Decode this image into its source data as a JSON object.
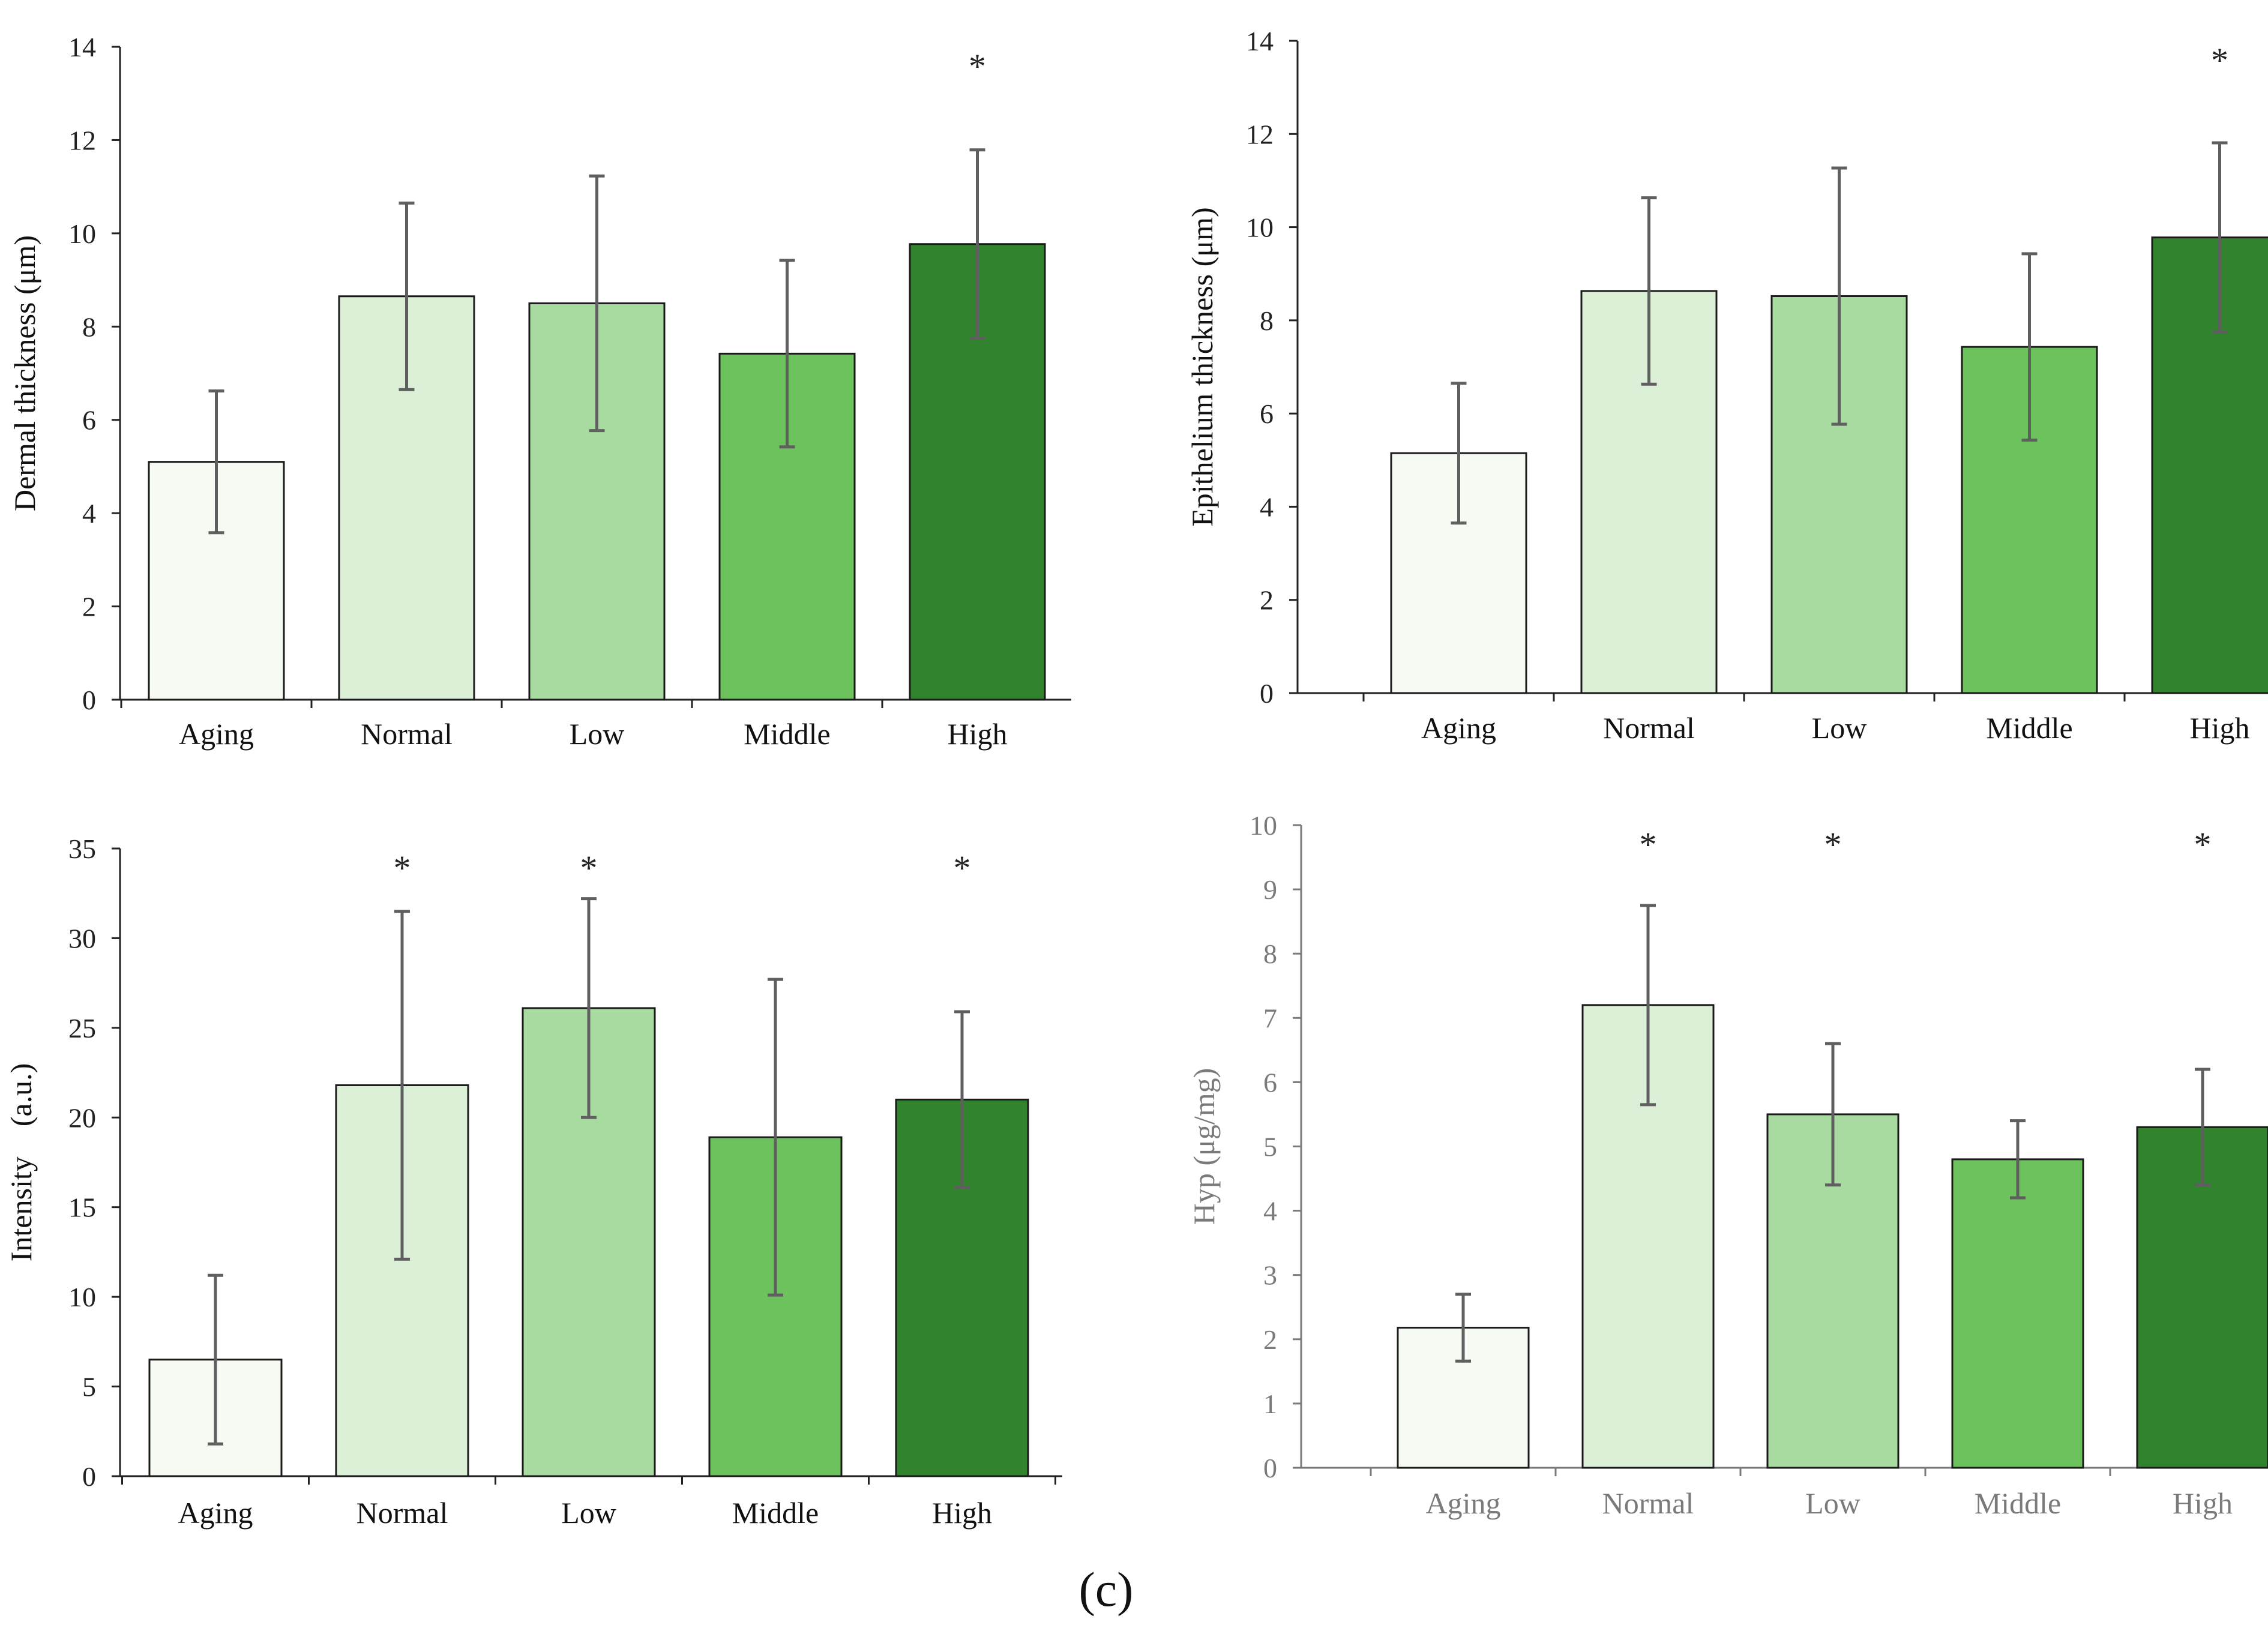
{
  "figure_label": "(c)",
  "chart_data": [
    {
      "type": "bar",
      "title": "",
      "xlabel": "",
      "ylabel": "Dermal thickness (μm)",
      "ylim": [
        0,
        14
      ],
      "yticks": [
        "0",
        "2",
        "4",
        "6",
        "8",
        "10",
        "12",
        "14"
      ],
      "categories": [
        "Aging",
        "Normal",
        "Low",
        "Middle",
        "High"
      ],
      "values": [
        5.1,
        8.65,
        8.5,
        7.42,
        9.77
      ],
      "errors": [
        1.52,
        2.0,
        2.73,
        2.0,
        2.02
      ],
      "significance": [
        "",
        "",
        "",
        "",
        "*"
      ],
      "colors": [
        "#f5faf3",
        "#dcf0d8",
        "#a8dba0",
        "#6cc35e",
        "#31842d"
      ],
      "tick_color": "#222222"
    },
    {
      "type": "bar",
      "title": "",
      "xlabel": "",
      "ylabel": "Epithelium thickness (μm)",
      "ylim": [
        0,
        14
      ],
      "yticks": [
        "0",
        "2",
        "4",
        "6",
        "8",
        "10",
        "12",
        "14"
      ],
      "categories": [
        "Aging",
        "Normal",
        "Low",
        "Middle",
        "High"
      ],
      "values": [
        5.15,
        8.63,
        8.52,
        7.43,
        9.78
      ],
      "errors": [
        1.5,
        2.0,
        2.75,
        2.0,
        2.03
      ],
      "significance": [
        "",
        "",
        "",
        "",
        "*"
      ],
      "colors": [
        "#f5faf3",
        "#dcf0d8",
        "#a8dba0",
        "#6cc35e",
        "#31842d"
      ],
      "tick_color": "#222222"
    },
    {
      "type": "bar",
      "title": "",
      "xlabel": "",
      "ylabel": "Intensity　(a.u.)",
      "ylim": [
        0,
        35
      ],
      "yticks": [
        "0",
        "5",
        "10",
        "15",
        "20",
        "25",
        "30",
        "35"
      ],
      "categories": [
        "Aging",
        "Normal",
        "Low",
        "Middle",
        "High"
      ],
      "values": [
        6.5,
        21.8,
        26.1,
        18.9,
        21.0
      ],
      "errors": [
        4.7,
        9.7,
        6.1,
        8.8,
        4.9
      ],
      "significance": [
        "",
        "*",
        "*",
        "",
        "*"
      ],
      "colors": [
        "#f5faf3",
        "#dcf0d8",
        "#a8dba0",
        "#6cc35e",
        "#31842d"
      ],
      "tick_color": "#222222"
    },
    {
      "type": "bar",
      "title": "",
      "xlabel": "",
      "ylabel": "Hyp (μg/mg)",
      "ylim": [
        0,
        10
      ],
      "yticks": [
        "0",
        "1",
        "2",
        "3",
        "4",
        "5",
        "6",
        "7",
        "8",
        "9",
        "10"
      ],
      "categories": [
        "Aging",
        "Normal",
        "Low",
        "Middle",
        "High"
      ],
      "values": [
        2.18,
        7.2,
        5.5,
        4.8,
        5.3
      ],
      "errors": [
        0.52,
        1.55,
        1.1,
        0.6,
        0.9
      ],
      "significance": [
        "",
        "*",
        "*",
        "",
        "*"
      ],
      "colors": [
        "#f5faf3",
        "#dcf0d8",
        "#a8dba0",
        "#6cc35e",
        "#31842d"
      ],
      "tick_color": "#7a7a7a"
    }
  ]
}
